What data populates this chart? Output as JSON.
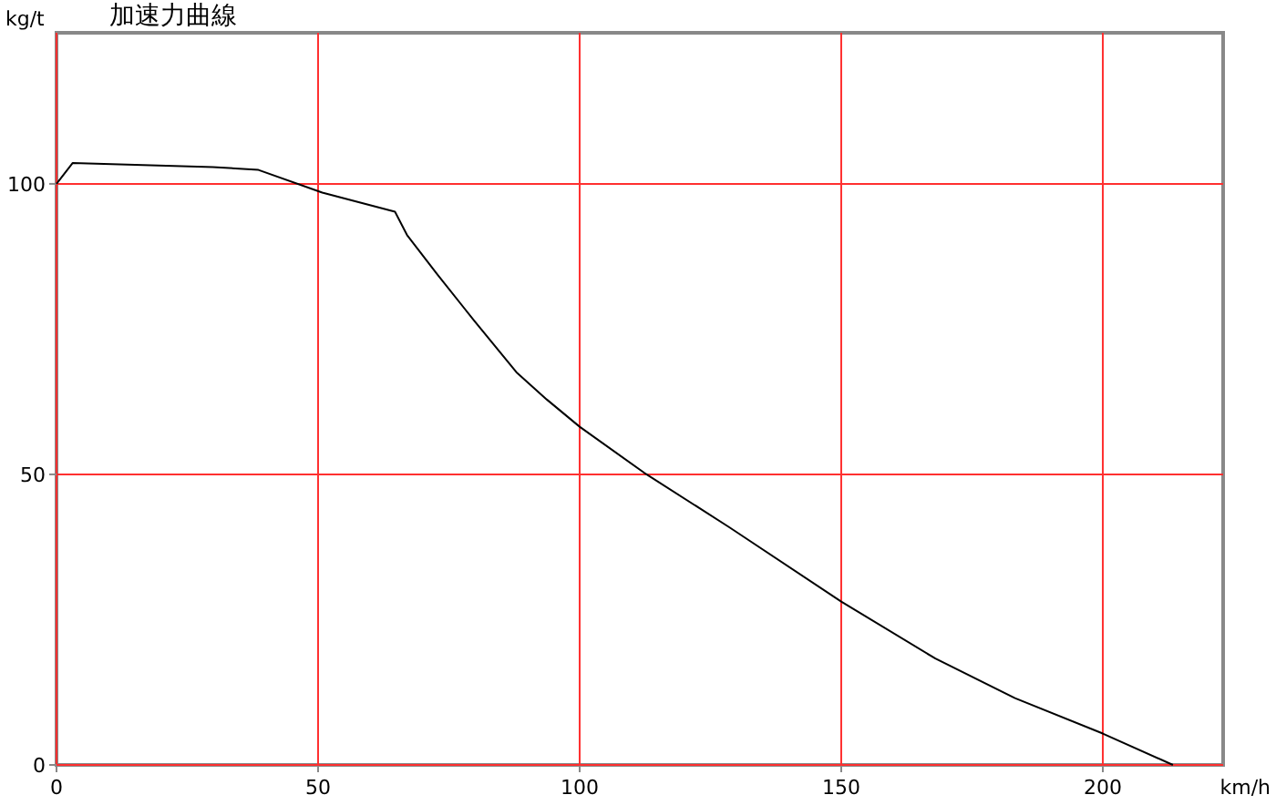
{
  "chart_data": {
    "type": "line",
    "title": "加速力曲線",
    "xlabel": "km/h",
    "ylabel": "kg/t",
    "x": [
      0,
      3.1,
      29.9,
      38.6,
      50.8,
      64.7,
      67,
      72.8,
      79.8,
      87.9,
      93.7,
      100,
      112.3,
      128.6,
      150,
      168,
      183.2,
      200,
      213.4
    ],
    "series": [
      {
        "color": "#000000",
        "values": [
          100,
          103.6,
          102.9,
          102.4,
          98.5,
          95.2,
          91.2,
          84.4,
          76.5,
          67.6,
          62.9,
          58.2,
          50.3,
          40.9,
          28.1,
          18.3,
          11.5,
          5.4,
          0
        ]
      }
    ],
    "xlim": [
      0,
      223
    ],
    "ylim": [
      0,
      126
    ],
    "xticks": [
      0,
      50,
      100,
      150,
      200
    ],
    "yticks": [
      0,
      50,
      100
    ],
    "grid": true,
    "marker": "none",
    "line_style": "solid"
  }
}
